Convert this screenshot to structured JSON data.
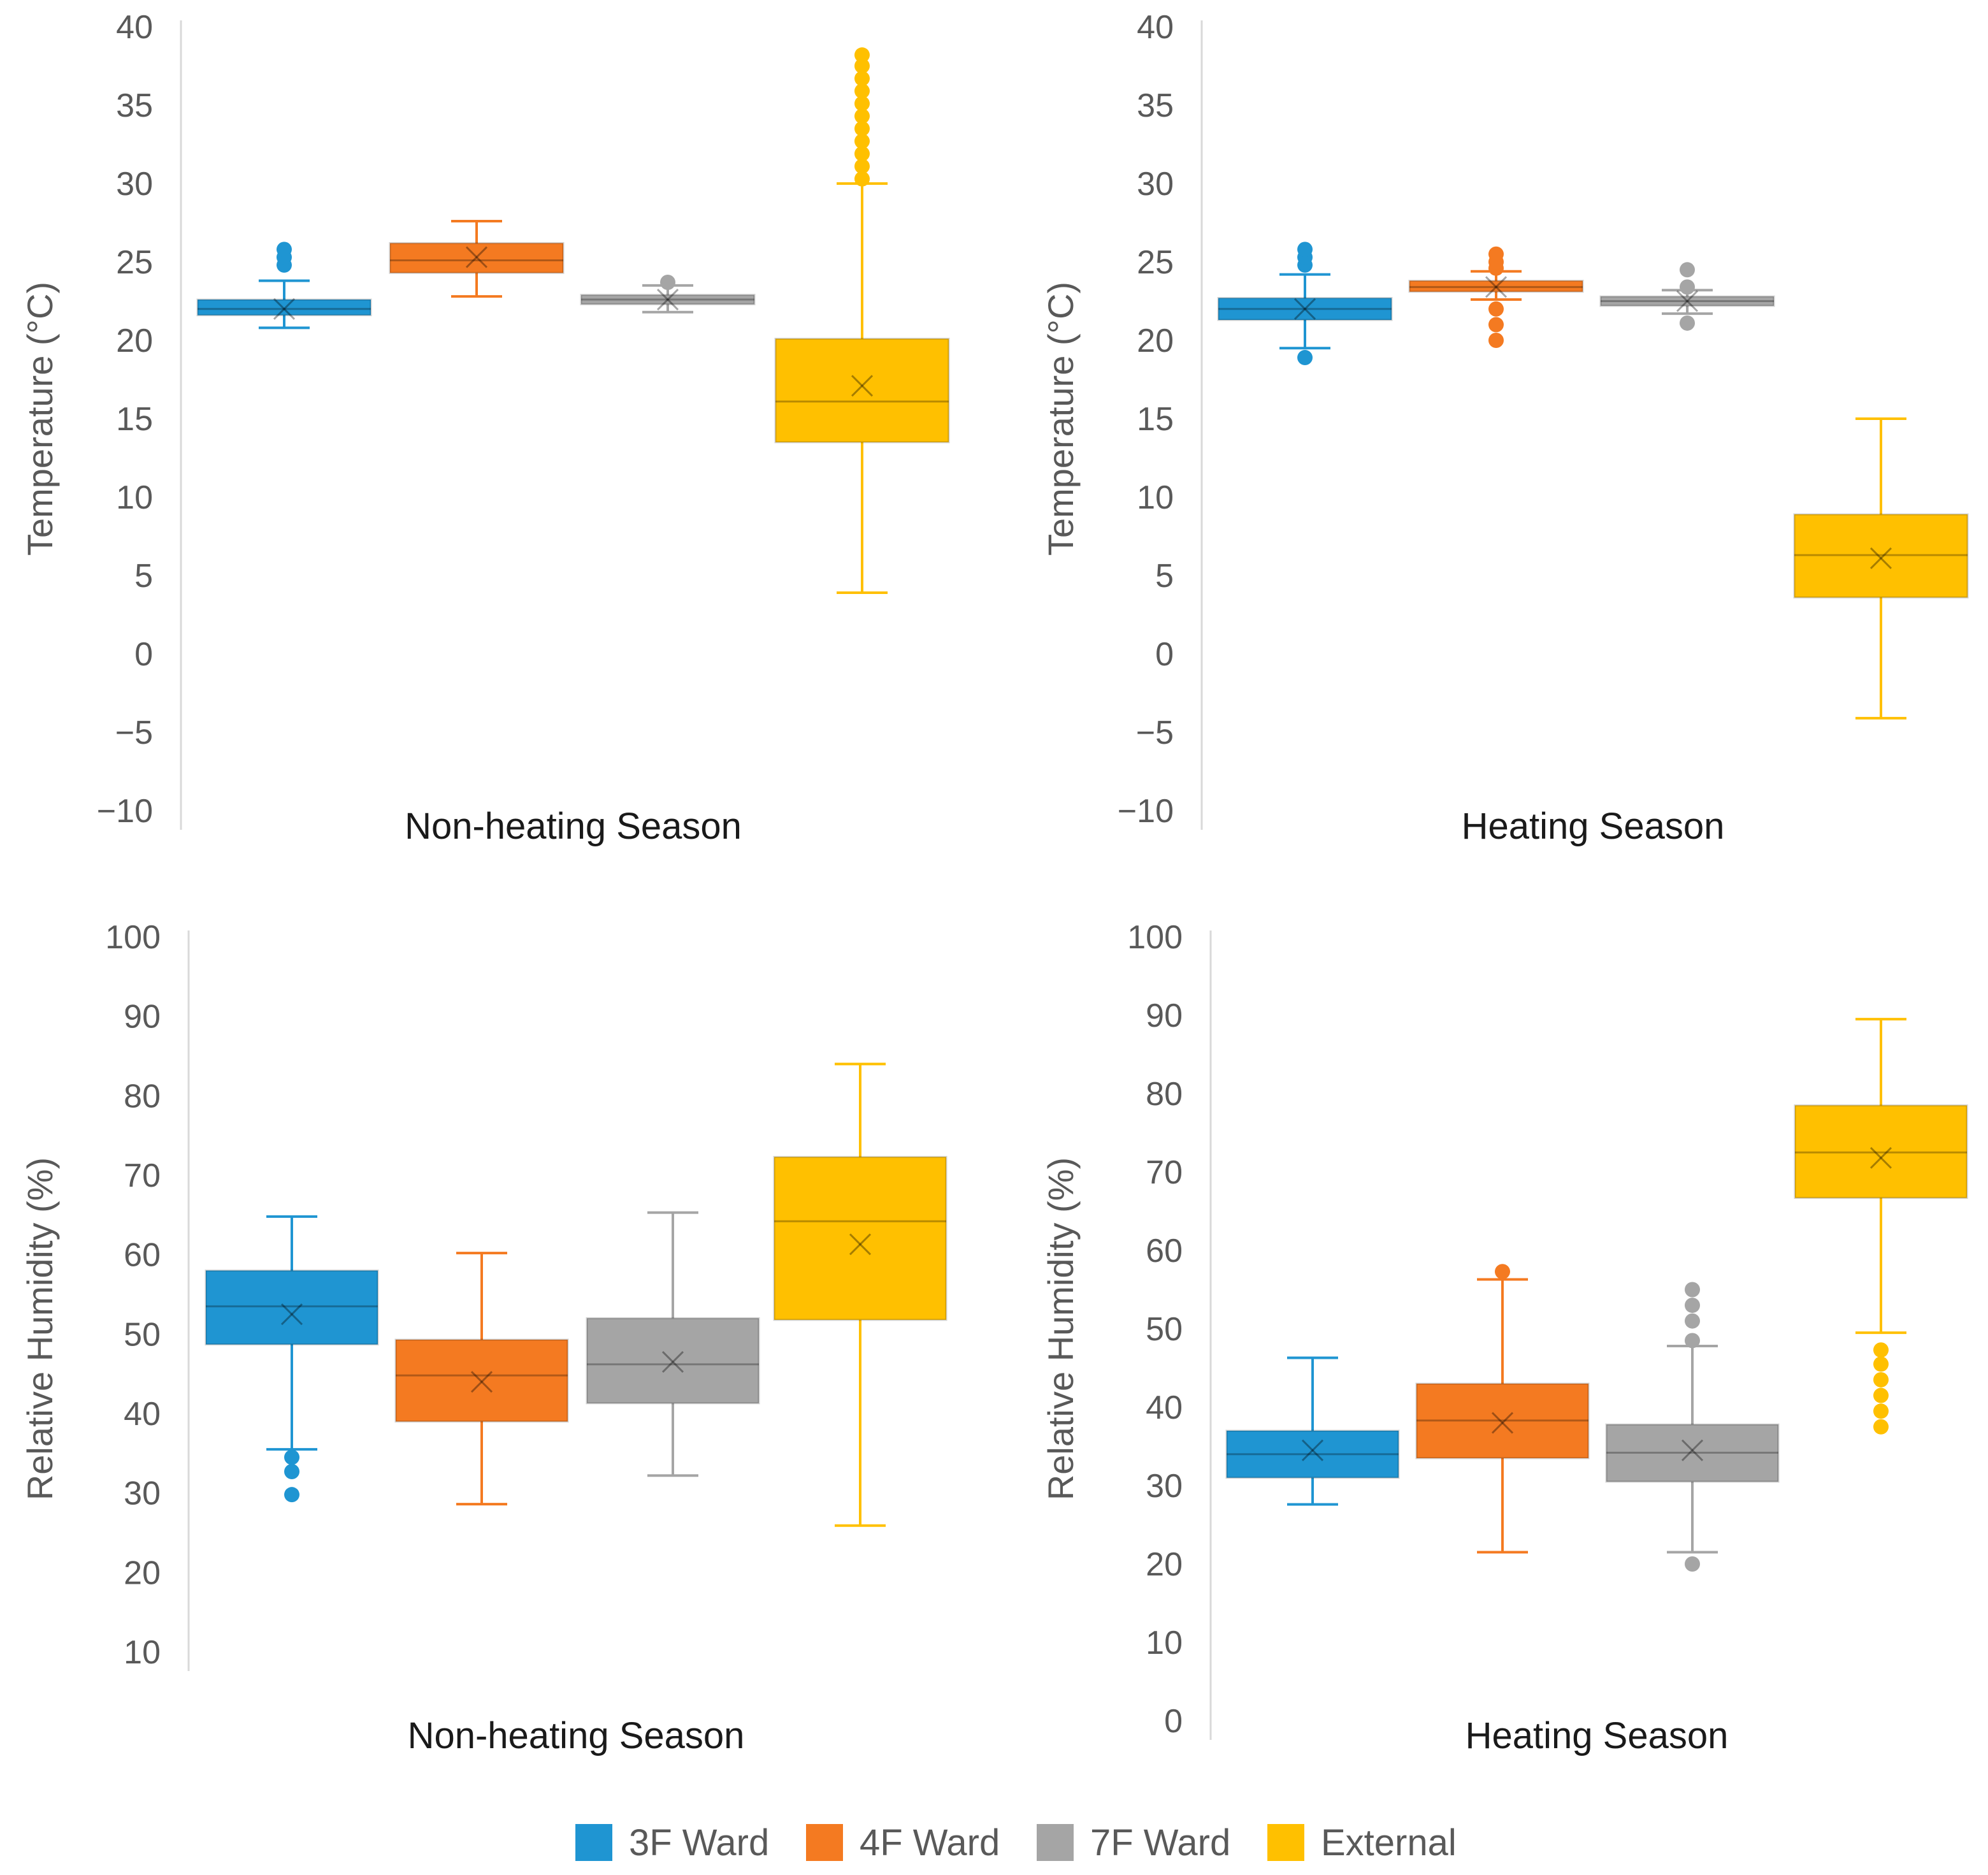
{
  "colors": {
    "3F Ward": "#1f95d2",
    "4F Ward": "#f47a21",
    "7F Ward": "#a5a5a5",
    "External": "#ffc000",
    "axis": "#d9d9d9"
  },
  "legend": [
    "3F Ward",
    "4F Ward",
    "7F Ward",
    "External"
  ],
  "chart_data": [
    {
      "type": "box",
      "id": "temp-nonheating",
      "xlabel": "Non-heating Season",
      "ylabel": "Temperature (°C)",
      "ylim": [
        -10,
        40
      ],
      "yticks": [
        40,
        35,
        30,
        25,
        20,
        15,
        10,
        5,
        0,
        -5,
        -10
      ],
      "series": [
        {
          "name": "3F Ward",
          "min": 20.8,
          "q1": 21.6,
          "median": 22.0,
          "q3": 22.6,
          "max": 23.8,
          "mean": 22.0,
          "outliers": [
            24.8,
            25.3,
            25.8
          ]
        },
        {
          "name": "4F Ward",
          "min": 22.8,
          "q1": 24.3,
          "median": 25.1,
          "q3": 26.2,
          "max": 27.6,
          "mean": 25.3,
          "outliers": []
        },
        {
          "name": "7F Ward",
          "min": 21.8,
          "q1": 22.3,
          "median": 22.6,
          "q3": 22.9,
          "max": 23.5,
          "mean": 22.6,
          "outliers": [
            23.7
          ]
        },
        {
          "name": "External",
          "min": 3.9,
          "q1": 13.5,
          "median": 16.1,
          "q3": 20.1,
          "max": 30.0,
          "mean": 17.1,
          "outliers": [
            30.3,
            31.1,
            31.9,
            32.7,
            33.5,
            34.3,
            35.1,
            35.9,
            36.7,
            37.5,
            38.2
          ]
        }
      ]
    },
    {
      "type": "box",
      "id": "temp-heating",
      "xlabel": "Heating Season",
      "ylabel": "Temperature (°C)",
      "ylim": [
        -10,
        40
      ],
      "yticks": [
        40,
        35,
        30,
        25,
        20,
        15,
        10,
        5,
        0,
        -5,
        -10
      ],
      "series": [
        {
          "name": "3F Ward",
          "min": 19.5,
          "q1": 21.3,
          "median": 22.0,
          "q3": 22.7,
          "max": 24.2,
          "mean": 22.0,
          "outliers": [
            18.9,
            24.8,
            25.3,
            25.8
          ]
        },
        {
          "name": "4F Ward",
          "min": 22.6,
          "q1": 23.1,
          "median": 23.4,
          "q3": 23.8,
          "max": 24.4,
          "mean": 23.4,
          "outliers": [
            20.0,
            21.0,
            22.0,
            24.6,
            25.0,
            25.5
          ]
        },
        {
          "name": "7F Ward",
          "min": 21.7,
          "q1": 22.2,
          "median": 22.5,
          "q3": 22.8,
          "max": 23.2,
          "mean": 22.5,
          "outliers": [
            21.1,
            23.4,
            24.5
          ]
        },
        {
          "name": "External",
          "min": -4.1,
          "q1": 3.6,
          "median": 6.3,
          "q3": 8.9,
          "max": 15.0,
          "mean": 6.1,
          "outliers": []
        }
      ]
    },
    {
      "type": "box",
      "id": "rh-nonheating",
      "xlabel": "Non-heating Season",
      "ylabel": "Relative Humidity (%)",
      "ylim": [
        10,
        100
      ],
      "yticks": [
        100,
        90,
        80,
        70,
        60,
        50,
        40,
        30,
        20,
        10
      ],
      "series": [
        {
          "name": "3F Ward",
          "min": 35.5,
          "q1": 48.7,
          "median": 53.5,
          "q3": 58.0,
          "max": 64.8,
          "mean": 52.5,
          "outliers": [
            29.8,
            32.7,
            34.5
          ]
        },
        {
          "name": "4F Ward",
          "min": 28.6,
          "q1": 39.0,
          "median": 44.8,
          "q3": 49.3,
          "max": 60.2,
          "mean": 44.0,
          "outliers": []
        },
        {
          "name": "7F Ward",
          "min": 32.2,
          "q1": 41.3,
          "median": 46.2,
          "q3": 52.0,
          "max": 65.3,
          "mean": 46.5,
          "outliers": []
        },
        {
          "name": "External",
          "min": 25.9,
          "q1": 51.8,
          "median": 64.2,
          "q3": 72.3,
          "max": 84.0,
          "mean": 61.3,
          "outliers": []
        }
      ]
    },
    {
      "type": "box",
      "id": "rh-heating",
      "xlabel": "Heating Season",
      "ylabel": "Relative Humidity (%)",
      "ylim": [
        0,
        100
      ],
      "yticks": [
        100,
        90,
        80,
        70,
        60,
        50,
        40,
        30,
        20,
        10,
        0
      ],
      "series": [
        {
          "name": "3F Ward",
          "min": 27.6,
          "q1": 31.0,
          "median": 34.0,
          "q3": 37.0,
          "max": 46.3,
          "mean": 34.5,
          "outliers": []
        },
        {
          "name": "4F Ward",
          "min": 21.5,
          "q1": 33.5,
          "median": 38.3,
          "q3": 43.0,
          "max": 56.3,
          "mean": 38.0,
          "outliers": [
            57.3
          ]
        },
        {
          "name": "7F Ward",
          "min": 21.5,
          "q1": 30.5,
          "median": 34.2,
          "q3": 37.8,
          "max": 47.8,
          "mean": 34.5,
          "outliers": [
            20.0,
            48.5,
            51.0,
            53.0,
            55.0
          ]
        },
        {
          "name": "External",
          "min": 49.5,
          "q1": 66.7,
          "median": 72.5,
          "q3": 78.5,
          "max": 89.5,
          "mean": 71.8,
          "outliers": [
            37.5,
            39.5,
            41.5,
            43.5,
            45.5,
            47.3
          ]
        }
      ]
    }
  ]
}
